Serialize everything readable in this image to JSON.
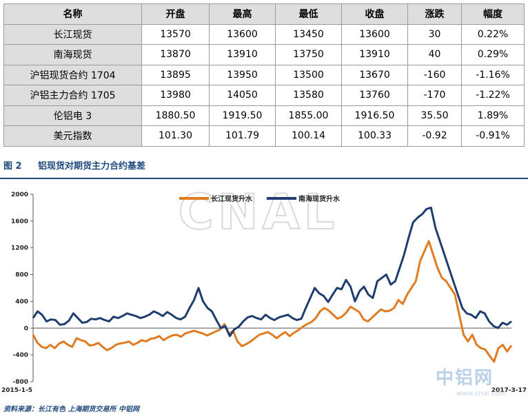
{
  "table": {
    "headers": [
      "名称",
      "开盘",
      "最高",
      "最低",
      "收盘",
      "涨跌",
      "幅度"
    ],
    "rows": [
      [
        "长江现货",
        "13570",
        "13600",
        "13450",
        "13600",
        "30",
        "0.22%"
      ],
      [
        "南海现货",
        "13870",
        "13910",
        "13750",
        "13910",
        "40",
        "0.29%"
      ],
      [
        "沪铝现货合约 1704",
        "13895",
        "13950",
        "13500",
        "13670",
        "-160",
        "-1.16%"
      ],
      [
        "沪铝主力合约 1705",
        "13980",
        "14050",
        "13580",
        "13760",
        "-170",
        "-1.22%"
      ],
      [
        "伦铝电 3",
        "1880.50",
        "1919.50",
        "1855.00",
        "1916.50",
        "35.50",
        "1.89%"
      ],
      [
        "美元指数",
        "101.30",
        "101.79",
        "100.14",
        "100.33",
        "-0.92",
        "-0.91%"
      ]
    ]
  },
  "figure": {
    "number": "图 2",
    "caption": "铝现货对期货主力合约基差"
  },
  "watermark": "CNAL",
  "logo": {
    "text": "中铝网",
    "url": "www.cnal.com"
  },
  "source": "资料来源：长江有色   上海期货交易所   中铝网",
  "colors": {
    "series_yangtze": "#e07b22",
    "series_nanhai": "#1f3d6e",
    "caption": "#1f497d"
  },
  "chart_data": {
    "type": "line",
    "x_start_label": "2015-1-5",
    "x_end_label": "2017-3-17",
    "ylim": [
      -800,
      2000
    ],
    "yticks": [
      -800,
      -400,
      0,
      400,
      800,
      1200,
      1600,
      2000
    ],
    "legend_position": "top-center",
    "grid": false,
    "series": [
      {
        "name": "长江现货升水",
        "color": "#e07b22",
        "values": [
          -100,
          -220,
          -280,
          -300,
          -250,
          -300,
          -230,
          -200,
          -250,
          -280,
          -150,
          -180,
          -200,
          -260,
          -250,
          -220,
          -280,
          -330,
          -300,
          -250,
          -230,
          -220,
          -200,
          -250,
          -220,
          -180,
          -200,
          -160,
          -150,
          -120,
          -180,
          -140,
          -110,
          -100,
          -130,
          -80,
          -60,
          -40,
          -60,
          -80,
          -110,
          -80,
          -50,
          -20,
          60,
          -90,
          -40,
          -200,
          -270,
          -240,
          -200,
          -150,
          -100,
          -80,
          -60,
          -100,
          -150,
          -100,
          -60,
          -120,
          -70,
          -30,
          20,
          60,
          90,
          150,
          250,
          300,
          260,
          200,
          140,
          170,
          230,
          320,
          280,
          240,
          130,
          100,
          160,
          220,
          280,
          250,
          260,
          300,
          420,
          360,
          500,
          600,
          700,
          1000,
          1150,
          1300,
          1100,
          900,
          750,
          700,
          600,
          500,
          200,
          -100,
          -200,
          -100,
          -250,
          -300,
          -320,
          -420,
          -500,
          -300,
          -250,
          -350,
          -260
        ]
      },
      {
        "name": "南海现货升水",
        "color": "#1f3d6e",
        "values": [
          150,
          250,
          200,
          100,
          130,
          120,
          50,
          60,
          110,
          220,
          150,
          80,
          90,
          140,
          130,
          150,
          120,
          100,
          170,
          150,
          180,
          220,
          200,
          180,
          150,
          170,
          200,
          250,
          220,
          180,
          240,
          200,
          150,
          130,
          170,
          300,
          420,
          600,
          400,
          300,
          250,
          120,
          0,
          30,
          -120,
          -20,
          20,
          100,
          160,
          180,
          150,
          130,
          200,
          150,
          120,
          160,
          180,
          200,
          150,
          120,
          140,
          300,
          450,
          600,
          520,
          480,
          390,
          500,
          600,
          580,
          720,
          620,
          400,
          550,
          620,
          500,
          450,
          700,
          750,
          800,
          650,
          700,
          900,
          1100,
          1350,
          1580,
          1650,
          1700,
          1780,
          1800,
          1500,
          1300,
          1100,
          900,
          700,
          500,
          300,
          220,
          200,
          150,
          250,
          220,
          100,
          30,
          0,
          80,
          50,
          100
        ]
      }
    ]
  }
}
